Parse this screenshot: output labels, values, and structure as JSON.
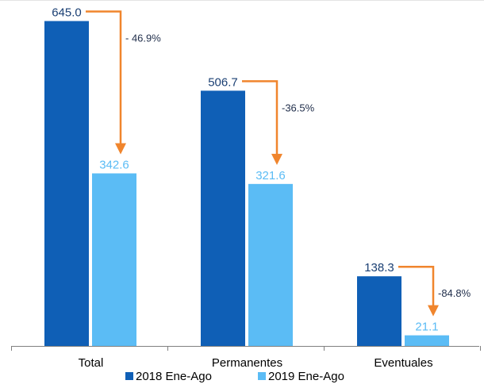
{
  "chart_data": {
    "type": "bar",
    "categories": [
      "Total",
      "Permanentes",
      "Eventuales"
    ],
    "series": [
      {
        "name": "2018 Ene-Ago",
        "values": [
          645.0,
          506.7,
          138.3
        ],
        "value_labels": [
          "645.0",
          "506.7",
          "138.3"
        ],
        "color": "#0f5fb6"
      },
      {
        "name": "2019 Ene-Ago",
        "values": [
          342.6,
          321.6,
          21.1
        ],
        "value_labels": [
          "342.6",
          "321.6",
          "21.1"
        ],
        "color": "#5bbcf5"
      }
    ],
    "change_labels": [
      "- 46.9%",
      "-36.5%",
      "-84.8%"
    ],
    "annotation_arrow_color": "#f0852d",
    "ylim": [
      0,
      660
    ],
    "grid": false,
    "legend_position": "bottom",
    "title": "",
    "xlabel": "",
    "ylabel": ""
  }
}
